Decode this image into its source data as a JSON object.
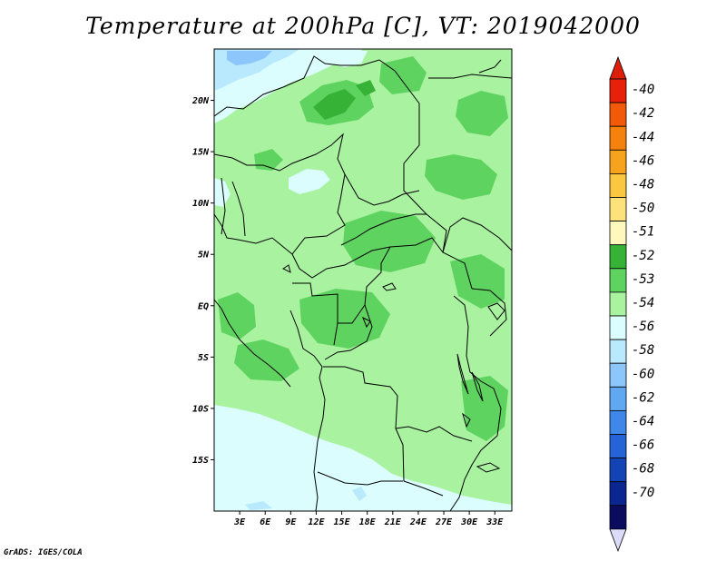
{
  "title": "Temperature at 200hPa [C], VT: 2019042000",
  "credit": "GrADS: IGES/COLA",
  "map": {
    "lon_range": [
      0,
      35
    ],
    "lat_range": [
      -20,
      25
    ],
    "lon_ticks": [
      "3E",
      "6E",
      "9E",
      "12E",
      "15E",
      "18E",
      "21E",
      "24E",
      "27E",
      "30E",
      "33E"
    ],
    "lat_ticks": [
      "20N",
      "15N",
      "10N",
      "5N",
      "EQ",
      "5S",
      "10S",
      "15S"
    ]
  },
  "colorbar": {
    "labels": [
      "-40",
      "-42",
      "-44",
      "-46",
      "-48",
      "-50",
      "-51",
      "-52",
      "-53",
      "-54",
      "-56",
      "-58",
      "-60",
      "-62",
      "-64",
      "-66",
      "-68",
      "-70"
    ],
    "colors": [
      "#e8200a",
      "#f25a0a",
      "#f5820c",
      "#f8a31e",
      "#fbc640",
      "#fde27a",
      "#fff7bc",
      "#36b336",
      "#5fd35f",
      "#a8f2a0",
      "#dbfdfd",
      "#b9e9fc",
      "#8cc6fa",
      "#61a8f3",
      "#3f87e8",
      "#2663d6",
      "#1443b6",
      "#0b2691",
      "#0c0c5e"
    ],
    "top_color": "#dd1e0a",
    "bottom_color": "#dcdcfa"
  }
}
